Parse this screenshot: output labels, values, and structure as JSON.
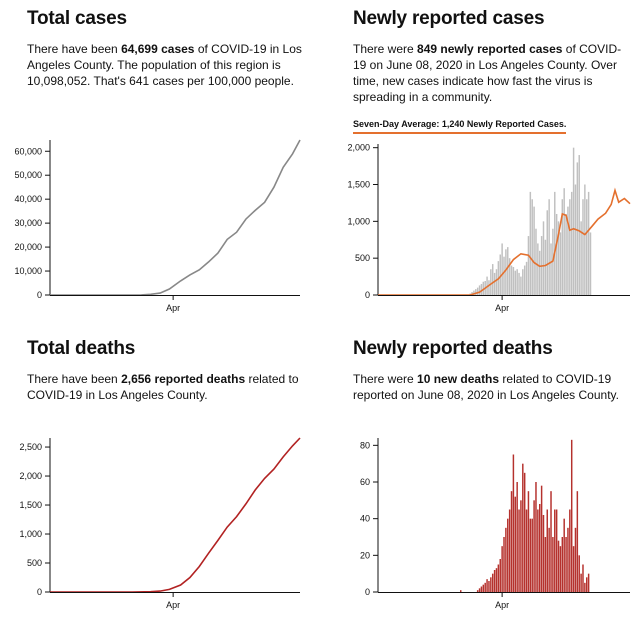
{
  "panels": [
    {
      "title": "Total cases",
      "desc": {
        "pre": "There have been ",
        "bold": "64,699 cases",
        "post": " of COVID-19 in Los Angeles County. The population of this region is 10,098,052. That's 641 cases per 100,000 people."
      }
    },
    {
      "title": "Newly reported cases",
      "desc": {
        "pre": "There were ",
        "bold": "849 newly reported cases",
        "post": " of COVID-19 on June 08, 2020 in Los Angeles County. Over time, new cases indicate how fast the virus is spreading in a community."
      },
      "avg_label": "Seven-Day Average: 1,240 Newly Reported Cases."
    },
    {
      "title": "Total deaths",
      "desc": {
        "pre": "There have been ",
        "bold": "2,656 reported deaths",
        "post": " related to COVID-19 in Los Angeles County."
      }
    },
    {
      "title": "Newly reported deaths",
      "desc": {
        "pre": "There were ",
        "bold": "10 new deaths",
        "post": " related to COVID-19 reported on June 08, 2020 in Los Angeles County."
      }
    }
  ],
  "chart_data": [
    {
      "type": "line",
      "title": "Total cases",
      "x_tick_labels": [
        "Apr"
      ],
      "y_ticks": [
        0,
        10000,
        20000,
        30000,
        40000,
        50000,
        60000
      ],
      "y_tick_labels": [
        "0",
        "10,000",
        "20,000",
        "30,000",
        "40,000",
        "50,000",
        "60,000"
      ],
      "ylim": [
        0,
        64699
      ],
      "x_start": "2020-01-26",
      "x_end": "2020-06-08",
      "color": "#888888",
      "points": [
        [
          "2020-01-26",
          0
        ],
        [
          "2020-03-01",
          0
        ],
        [
          "2020-03-10",
          10
        ],
        [
          "2020-03-15",
          50
        ],
        [
          "2020-03-20",
          300
        ],
        [
          "2020-03-25",
          800
        ],
        [
          "2020-03-30",
          2500
        ],
        [
          "2020-04-05",
          5900
        ],
        [
          "2020-04-10",
          8400
        ],
        [
          "2020-04-15",
          10500
        ],
        [
          "2020-04-20",
          13800
        ],
        [
          "2020-04-25",
          17500
        ],
        [
          "2020-04-30",
          23200
        ],
        [
          "2020-05-05",
          26200
        ],
        [
          "2020-05-10",
          31700
        ],
        [
          "2020-05-15",
          35300
        ],
        [
          "2020-05-20",
          38700
        ],
        [
          "2020-05-25",
          45000
        ],
        [
          "2020-05-30",
          53300
        ],
        [
          "2020-06-04",
          58900
        ],
        [
          "2020-06-08",
          64699
        ]
      ]
    },
    {
      "type": "bar",
      "title": "Newly reported cases",
      "x_tick_labels": [
        "Apr"
      ],
      "y_ticks": [
        0,
        500,
        1000,
        1500,
        2000
      ],
      "y_tick_labels": [
        "0",
        "500",
        "1,000",
        "1,500",
        "2,000"
      ],
      "ylim": [
        0,
        2050
      ],
      "x_start": "2020-01-26",
      "x_end": "2020-06-08",
      "bar_color": "#c0c0c0",
      "avg_color": "#e4702e",
      "values_start": "2020-03-15",
      "values": [
        20,
        40,
        60,
        80,
        100,
        130,
        150,
        180,
        190,
        250,
        200,
        350,
        420,
        300,
        350,
        460,
        550,
        700,
        520,
        620,
        650,
        500,
        400,
        380,
        330,
        350,
        300,
        250,
        350,
        400,
        450,
        800,
        1400,
        1300,
        1200,
        900,
        700,
        600,
        800,
        1000,
        750,
        1150,
        1300,
        700,
        900,
        1400,
        1100,
        1000,
        850,
        1300,
        1450,
        1100,
        1200,
        1300,
        1400,
        2000,
        1500,
        1800,
        1900,
        1000,
        1300,
        1500,
        1300,
        1400,
        849
      ],
      "avg_points": [
        [
          "2020-03-15",
          0
        ],
        [
          "2020-03-20",
          40
        ],
        [
          "2020-03-25",
          130
        ],
        [
          "2020-03-30",
          220
        ],
        [
          "2020-04-03",
          340
        ],
        [
          "2020-04-07",
          480
        ],
        [
          "2020-04-11",
          560
        ],
        [
          "2020-04-15",
          540
        ],
        [
          "2020-04-18",
          440
        ],
        [
          "2020-04-21",
          390
        ],
        [
          "2020-04-24",
          400
        ],
        [
          "2020-04-28",
          460
        ],
        [
          "2020-05-01",
          820
        ],
        [
          "2020-05-03",
          1100
        ],
        [
          "2020-05-05",
          1080
        ],
        [
          "2020-05-07",
          880
        ],
        [
          "2020-05-09",
          900
        ],
        [
          "2020-05-12",
          870
        ],
        [
          "2020-05-15",
          820
        ],
        [
          "2020-05-19",
          940
        ],
        [
          "2020-05-22",
          1030
        ],
        [
          "2020-05-26",
          1110
        ],
        [
          "2020-05-29",
          1230
        ],
        [
          "2020-05-31",
          1420
        ],
        [
          "2020-06-02",
          1260
        ],
        [
          "2020-06-05",
          1310
        ],
        [
          "2020-06-08",
          1240
        ]
      ]
    },
    {
      "type": "line",
      "title": "Total deaths",
      "x_tick_labels": [
        "Apr"
      ],
      "y_ticks": [
        0,
        500,
        1000,
        1500,
        2000,
        2500
      ],
      "y_tick_labels": [
        "0",
        "500",
        "1,000",
        "1,500",
        "2,000",
        "2,500"
      ],
      "ylim": [
        0,
        2656
      ],
      "x_start": "2020-01-26",
      "x_end": "2020-06-08",
      "color": "#b22222",
      "points": [
        [
          "2020-01-26",
          0
        ],
        [
          "2020-03-10",
          0
        ],
        [
          "2020-03-20",
          5
        ],
        [
          "2020-03-25",
          15
        ],
        [
          "2020-03-30",
          45
        ],
        [
          "2020-04-05",
          120
        ],
        [
          "2020-04-10",
          250
        ],
        [
          "2020-04-15",
          440
        ],
        [
          "2020-04-20",
          670
        ],
        [
          "2020-04-25",
          890
        ],
        [
          "2020-04-30",
          1120
        ],
        [
          "2020-05-05",
          1300
        ],
        [
          "2020-05-10",
          1520
        ],
        [
          "2020-05-15",
          1760
        ],
        [
          "2020-05-20",
          1960
        ],
        [
          "2020-05-25",
          2120
        ],
        [
          "2020-05-30",
          2330
        ],
        [
          "2020-06-04",
          2520
        ],
        [
          "2020-06-08",
          2656
        ]
      ]
    },
    {
      "type": "bar",
      "title": "Newly reported deaths",
      "x_tick_labels": [
        "Apr"
      ],
      "y_ticks": [
        0,
        20,
        40,
        60,
        80
      ],
      "y_tick_labels": [
        "0",
        "20",
        "40",
        "60",
        "80"
      ],
      "ylim": [
        0,
        84
      ],
      "x_start": "2020-01-26",
      "x_end": "2020-06-08",
      "bar_color": "#b5312d",
      "values_start": "2020-03-10",
      "values": [
        1,
        0,
        0,
        0,
        0,
        0,
        0,
        0,
        0,
        1,
        2,
        3,
        4,
        5,
        7,
        6,
        8,
        10,
        12,
        13,
        15,
        18,
        25,
        30,
        35,
        40,
        45,
        55,
        75,
        52,
        60,
        45,
        50,
        70,
        65,
        45,
        55,
        40,
        40,
        50,
        60,
        45,
        48,
        58,
        42,
        30,
        45,
        35,
        55,
        30,
        45,
        45,
        28,
        25,
        30,
        40,
        30,
        35,
        45,
        83,
        25,
        35,
        55,
        20,
        10,
        15,
        5,
        8,
        10
      ]
    }
  ]
}
